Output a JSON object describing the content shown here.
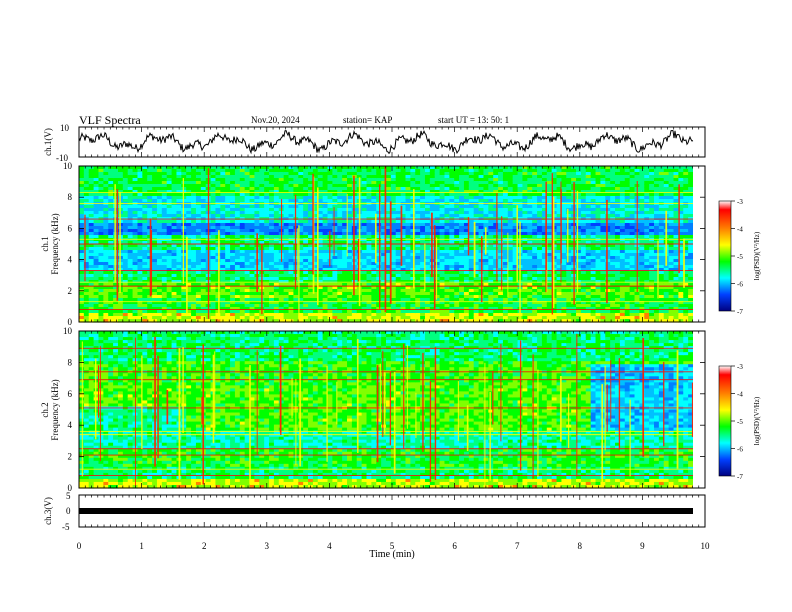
{
  "header": {
    "title": "VLF Spectra",
    "date": "Nov.20, 2024",
    "station": "station= KAP",
    "start": "start  UT  =   13: 50: 1"
  },
  "colorbar": {
    "label": "log(PSD)(V²/Hz)",
    "ticks": [
      "-3",
      "-4",
      "-5",
      "-6",
      "-7"
    ],
    "colors": [
      "#ff0000",
      "#ff8000",
      "#ffff00",
      "#00ff00",
      "#00ffff",
      "#0080ff",
      "#0000ff",
      "#000080"
    ]
  },
  "chart_data": [
    {
      "type": "line",
      "panel": "waveform-ch1",
      "ylabel": "ch.1(V)",
      "ylim": [
        -10,
        10
      ],
      "yticks": [
        "10",
        "-10"
      ],
      "xlim": [
        0,
        10
      ],
      "note_series_color": "#000000"
    },
    {
      "type": "heatmap",
      "panel": "spectrogram-ch1",
      "ylabel_line1": "ch.1",
      "ylabel_line2": "Frequency (kHz)",
      "ylim": [
        0,
        10
      ],
      "yticks": [
        "0",
        "2",
        "4",
        "6",
        "8",
        "10"
      ],
      "xlim": [
        0,
        10
      ],
      "color_scale": [
        -7,
        -3
      ]
    },
    {
      "type": "heatmap",
      "panel": "spectrogram-ch2",
      "ylabel_line1": "ch.2",
      "ylabel_line2": "Frequency (kHz)",
      "ylim": [
        0,
        10
      ],
      "yticks": [
        "0",
        "2",
        "4",
        "6",
        "8",
        "10"
      ],
      "xlim": [
        0,
        10
      ],
      "color_scale": [
        -7,
        -3
      ]
    },
    {
      "type": "line",
      "panel": "waveform-ch3",
      "ylabel": "ch.3(V)",
      "ylim": [
        -5,
        5
      ],
      "yticks": [
        "5",
        "0",
        "-5"
      ],
      "xlim": [
        0,
        10
      ],
      "xlabel": "Time (min)",
      "xticks": [
        "0",
        "1",
        "2",
        "3",
        "4",
        "5",
        "6",
        "7",
        "8",
        "9",
        "10"
      ]
    }
  ]
}
